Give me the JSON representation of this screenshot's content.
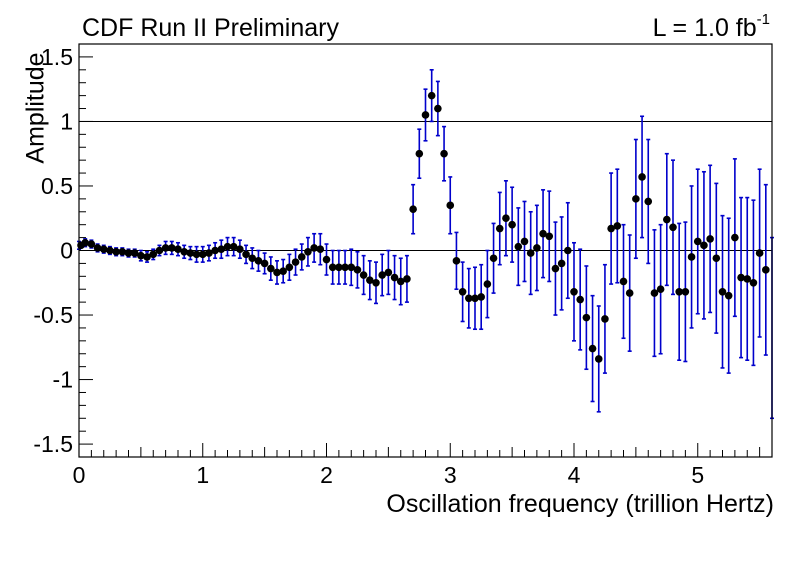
{
  "header": {
    "left_label": "CDF Run II Preliminary",
    "lumi_prefix": "L = 1.0 fb",
    "lumi_exponent": "-1"
  },
  "chart_data": {
    "type": "scatter",
    "xlabel": "Oscillation frequency (trillion Hertz)",
    "ylabel": "Amplitude",
    "xlim": [
      0,
      5.6
    ],
    "ylim": [
      -1.6,
      1.6
    ],
    "xticks": [
      0,
      1,
      2,
      3,
      4,
      5
    ],
    "yticks": [
      -1.5,
      -1,
      -0.5,
      0,
      0.5,
      1,
      1.5
    ],
    "xtick_labels": [
      "0",
      "1",
      "2",
      "3",
      "4",
      "5"
    ],
    "ytick_labels": [
      "-1.5",
      "-1",
      "-0.5",
      "0",
      "0.5",
      "1",
      "1.5"
    ],
    "reference_lines": [
      0,
      1
    ],
    "grid": false,
    "colors": {
      "marker": "#000000",
      "error_bar": "#0000cc",
      "line": "#000000"
    },
    "series": [
      {
        "x": [
          0.0,
          0.05,
          0.1,
          0.15,
          0.2,
          0.25,
          0.3,
          0.35,
          0.4,
          0.45,
          0.5,
          0.55,
          0.6,
          0.65,
          0.7,
          0.75,
          0.8,
          0.85,
          0.9,
          0.95,
          1.0,
          1.05,
          1.1,
          1.15,
          1.2,
          1.25,
          1.3,
          1.35,
          1.4,
          1.45,
          1.5,
          1.55,
          1.6,
          1.65,
          1.7,
          1.75,
          1.8,
          1.85,
          1.9,
          1.95,
          2.0,
          2.05,
          2.1,
          2.15,
          2.2,
          2.25,
          2.3,
          2.35,
          2.4,
          2.45,
          2.5,
          2.55,
          2.6,
          2.65,
          2.7,
          2.75,
          2.8,
          2.85,
          2.9,
          2.95,
          3.0,
          3.05,
          3.1,
          3.15,
          3.2,
          3.25,
          3.3,
          3.35,
          3.4,
          3.45,
          3.5,
          3.55,
          3.6,
          3.65,
          3.7,
          3.75,
          3.8,
          3.85,
          3.9,
          3.95,
          4.0,
          4.05,
          4.1,
          4.15,
          4.2,
          4.25,
          4.3,
          4.35,
          4.4,
          4.45,
          4.5,
          4.55,
          4.6,
          4.65,
          4.7,
          4.75,
          4.8,
          4.85,
          4.9,
          4.95,
          5.0,
          5.05,
          5.1,
          5.15,
          5.2,
          5.25,
          5.3,
          5.35,
          5.4,
          5.45,
          5.5,
          5.55,
          5.6
        ],
        "y": [
          0.04,
          0.06,
          0.05,
          0.02,
          0.01,
          0.0,
          -0.01,
          -0.01,
          -0.02,
          -0.02,
          -0.04,
          -0.05,
          -0.03,
          0.0,
          0.02,
          0.02,
          0.01,
          -0.01,
          -0.02,
          -0.03,
          -0.03,
          -0.02,
          0.0,
          0.01,
          0.03,
          0.03,
          0.01,
          -0.03,
          -0.06,
          -0.08,
          -0.1,
          -0.14,
          -0.17,
          -0.16,
          -0.13,
          -0.09,
          -0.05,
          -0.01,
          0.02,
          0.01,
          -0.07,
          -0.13,
          -0.13,
          -0.13,
          -0.13,
          -0.15,
          -0.19,
          -0.23,
          -0.25,
          -0.19,
          -0.17,
          -0.21,
          -0.24,
          -0.22,
          0.32,
          0.75,
          1.05,
          1.2,
          1.1,
          0.75,
          0.35,
          -0.08,
          -0.32,
          -0.37,
          -0.37,
          -0.36,
          -0.26,
          -0.06,
          0.17,
          0.25,
          0.2,
          0.03,
          0.07,
          -0.02,
          0.02,
          0.13,
          0.11,
          -0.14,
          -0.1,
          0.0,
          -0.32,
          -0.38,
          -0.52,
          -0.76,
          -0.84,
          -0.53,
          0.17,
          0.19,
          -0.24,
          -0.33,
          0.4,
          0.57,
          0.38,
          -0.33,
          -0.3,
          0.24,
          0.18,
          -0.32,
          -0.32,
          -0.05,
          0.07,
          0.04,
          0.09,
          -0.06,
          -0.32,
          -0.35,
          0.1,
          -0.21,
          -0.22,
          -0.25,
          -0.02,
          -0.15,
          -0.6
        ],
        "err": [
          0.03,
          0.03,
          0.03,
          0.03,
          0.03,
          0.03,
          0.03,
          0.03,
          0.03,
          0.03,
          0.04,
          0.04,
          0.04,
          0.04,
          0.05,
          0.05,
          0.05,
          0.05,
          0.05,
          0.06,
          0.06,
          0.06,
          0.06,
          0.07,
          0.07,
          0.07,
          0.07,
          0.07,
          0.08,
          0.08,
          0.08,
          0.09,
          0.09,
          0.09,
          0.1,
          0.1,
          0.1,
          0.11,
          0.11,
          0.12,
          0.12,
          0.13,
          0.13,
          0.13,
          0.14,
          0.14,
          0.15,
          0.15,
          0.16,
          0.16,
          0.17,
          0.17,
          0.18,
          0.18,
          0.19,
          0.19,
          0.2,
          0.2,
          0.21,
          0.21,
          0.22,
          0.22,
          0.23,
          0.23,
          0.24,
          0.25,
          0.26,
          0.27,
          0.28,
          0.29,
          0.29,
          0.3,
          0.31,
          0.32,
          0.33,
          0.34,
          0.35,
          0.36,
          0.36,
          0.37,
          0.38,
          0.39,
          0.4,
          0.41,
          0.41,
          0.42,
          0.43,
          0.44,
          0.44,
          0.45,
          0.46,
          0.47,
          0.48,
          0.49,
          0.5,
          0.51,
          0.52,
          0.53,
          0.54,
          0.55,
          0.56,
          0.57,
          0.57,
          0.58,
          0.59,
          0.6,
          0.61,
          0.62,
          0.63,
          0.64,
          0.65,
          0.66,
          0.7
        ]
      }
    ]
  }
}
